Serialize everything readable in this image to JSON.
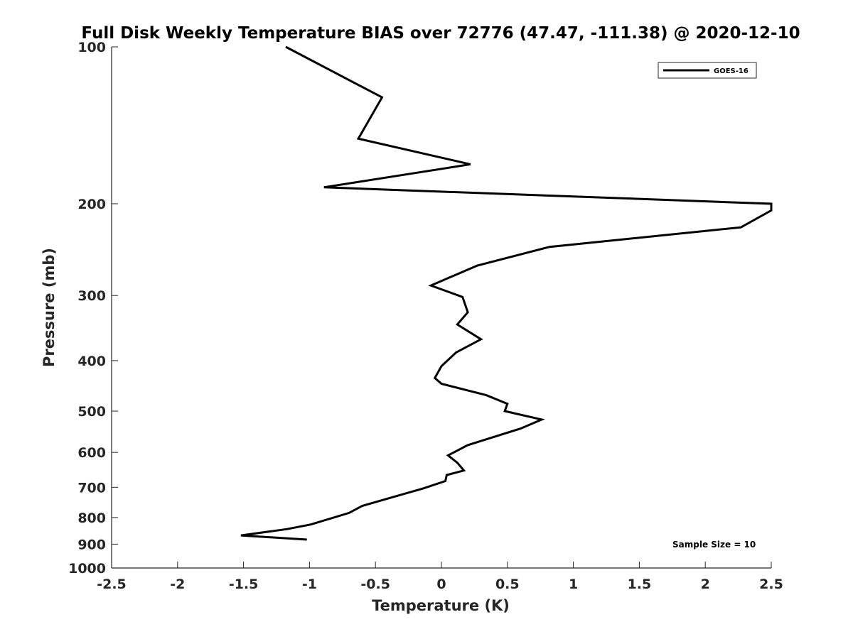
{
  "chart_data": {
    "type": "line",
    "title": "Full Disk Weekly Temperature BIAS over 72776 (47.47, -111.38) @ 2020-12-10",
    "xlabel": "Temperature (K)",
    "ylabel": "Pressure (mb)",
    "xlim": [
      -2.5,
      2.5
    ],
    "ylim": [
      1000,
      100
    ],
    "y_scale": "log",
    "y_reversed": true,
    "grid": false,
    "x_ticks": [
      -2.5,
      -2,
      -1.5,
      -1,
      -0.5,
      0,
      0.5,
      1,
      1.5,
      2,
      2.5
    ],
    "x_tick_labels": [
      "-2.5",
      "-2",
      "-1.5",
      "-1",
      "-0.5",
      "0",
      "0.5",
      "1",
      "1.5",
      "2",
      "2.5"
    ],
    "y_ticks": [
      100,
      200,
      300,
      400,
      500,
      600,
      700,
      800,
      900,
      1000
    ],
    "y_tick_labels": [
      "100",
      "200",
      "300",
      "400",
      "500",
      "600",
      "700",
      "800",
      "900",
      "1000"
    ],
    "legend": {
      "position": "top-right",
      "entries": [
        "GOES-16"
      ]
    },
    "annotation": "Sample Size = 10",
    "series": [
      {
        "name": "GOES-16",
        "color": "#000000",
        "points": [
          [
            -1.18,
            100
          ],
          [
            -0.45,
            125
          ],
          [
            -0.63,
            150
          ],
          [
            0.22,
            168
          ],
          [
            -0.89,
            186
          ],
          [
            2.5,
            200
          ],
          [
            2.5,
            206
          ],
          [
            2.27,
            222
          ],
          [
            0.82,
            242
          ],
          [
            0.27,
            263
          ],
          [
            -0.08,
            287
          ],
          [
            0.16,
            302
          ],
          [
            0.2,
            323
          ],
          [
            0.12,
            341
          ],
          [
            0.3,
            364
          ],
          [
            0.11,
            386
          ],
          [
            0.0,
            410
          ],
          [
            -0.05,
            432
          ],
          [
            0.0,
            443
          ],
          [
            0.34,
            466
          ],
          [
            0.5,
            484
          ],
          [
            0.48,
            500
          ],
          [
            0.76,
            519
          ],
          [
            0.6,
            540
          ],
          [
            0.2,
            581
          ],
          [
            0.05,
            608
          ],
          [
            0.12,
            628
          ],
          [
            0.17,
            650
          ],
          [
            0.04,
            663
          ],
          [
            0.03,
            681
          ],
          [
            -0.14,
            704
          ],
          [
            -0.36,
            730
          ],
          [
            -0.6,
            760
          ],
          [
            -0.7,
            784
          ],
          [
            -0.99,
            825
          ],
          [
            -1.17,
            842
          ],
          [
            -1.52,
            866
          ],
          [
            -1.02,
            882
          ]
        ]
      }
    ]
  }
}
